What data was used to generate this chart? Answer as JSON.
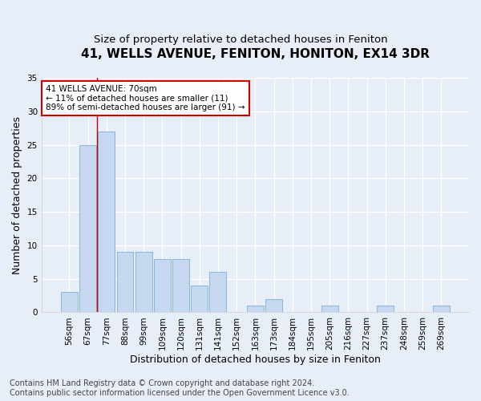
{
  "title": "41, WELLS AVENUE, FENITON, HONITON, EX14 3DR",
  "subtitle": "Size of property relative to detached houses in Feniton",
  "xlabel": "Distribution of detached houses by size in Feniton",
  "ylabel": "Number of detached properties",
  "categories": [
    "56sqm",
    "67sqm",
    "77sqm",
    "88sqm",
    "99sqm",
    "109sqm",
    "120sqm",
    "131sqm",
    "141sqm",
    "152sqm",
    "163sqm",
    "173sqm",
    "184sqm",
    "195sqm",
    "205sqm",
    "216sqm",
    "227sqm",
    "237sqm",
    "248sqm",
    "259sqm",
    "269sqm"
  ],
  "values": [
    3,
    25,
    27,
    9,
    9,
    8,
    8,
    4,
    6,
    0,
    1,
    2,
    0,
    0,
    1,
    0,
    0,
    1,
    0,
    0,
    1
  ],
  "bar_color": "#c5d8f0",
  "bar_edge_color": "#7aafd4",
  "ylim": [
    0,
    35
  ],
  "yticks": [
    0,
    5,
    10,
    15,
    20,
    25,
    30,
    35
  ],
  "annotation_text_line1": "41 WELLS AVENUE: 70sqm",
  "annotation_text_line2": "← 11% of detached houses are smaller (11)",
  "annotation_text_line3": "89% of semi-detached houses are larger (91) →",
  "annotation_box_facecolor": "#ffffff",
  "annotation_box_edgecolor": "#cc0000",
  "vline_color": "#cc0000",
  "vline_x": 1.5,
  "footer_line1": "Contains HM Land Registry data © Crown copyright and database right 2024.",
  "footer_line2": "Contains public sector information licensed under the Open Government Licence v3.0.",
  "fig_bg_color": "#e8eef8",
  "plot_bg_color": "#e8eef8",
  "grid_color": "#ffffff",
  "title_fontsize": 11,
  "subtitle_fontsize": 9.5,
  "axis_label_fontsize": 9,
  "tick_fontsize": 7.5,
  "footer_fontsize": 7,
  "annotation_fontsize": 7.5
}
